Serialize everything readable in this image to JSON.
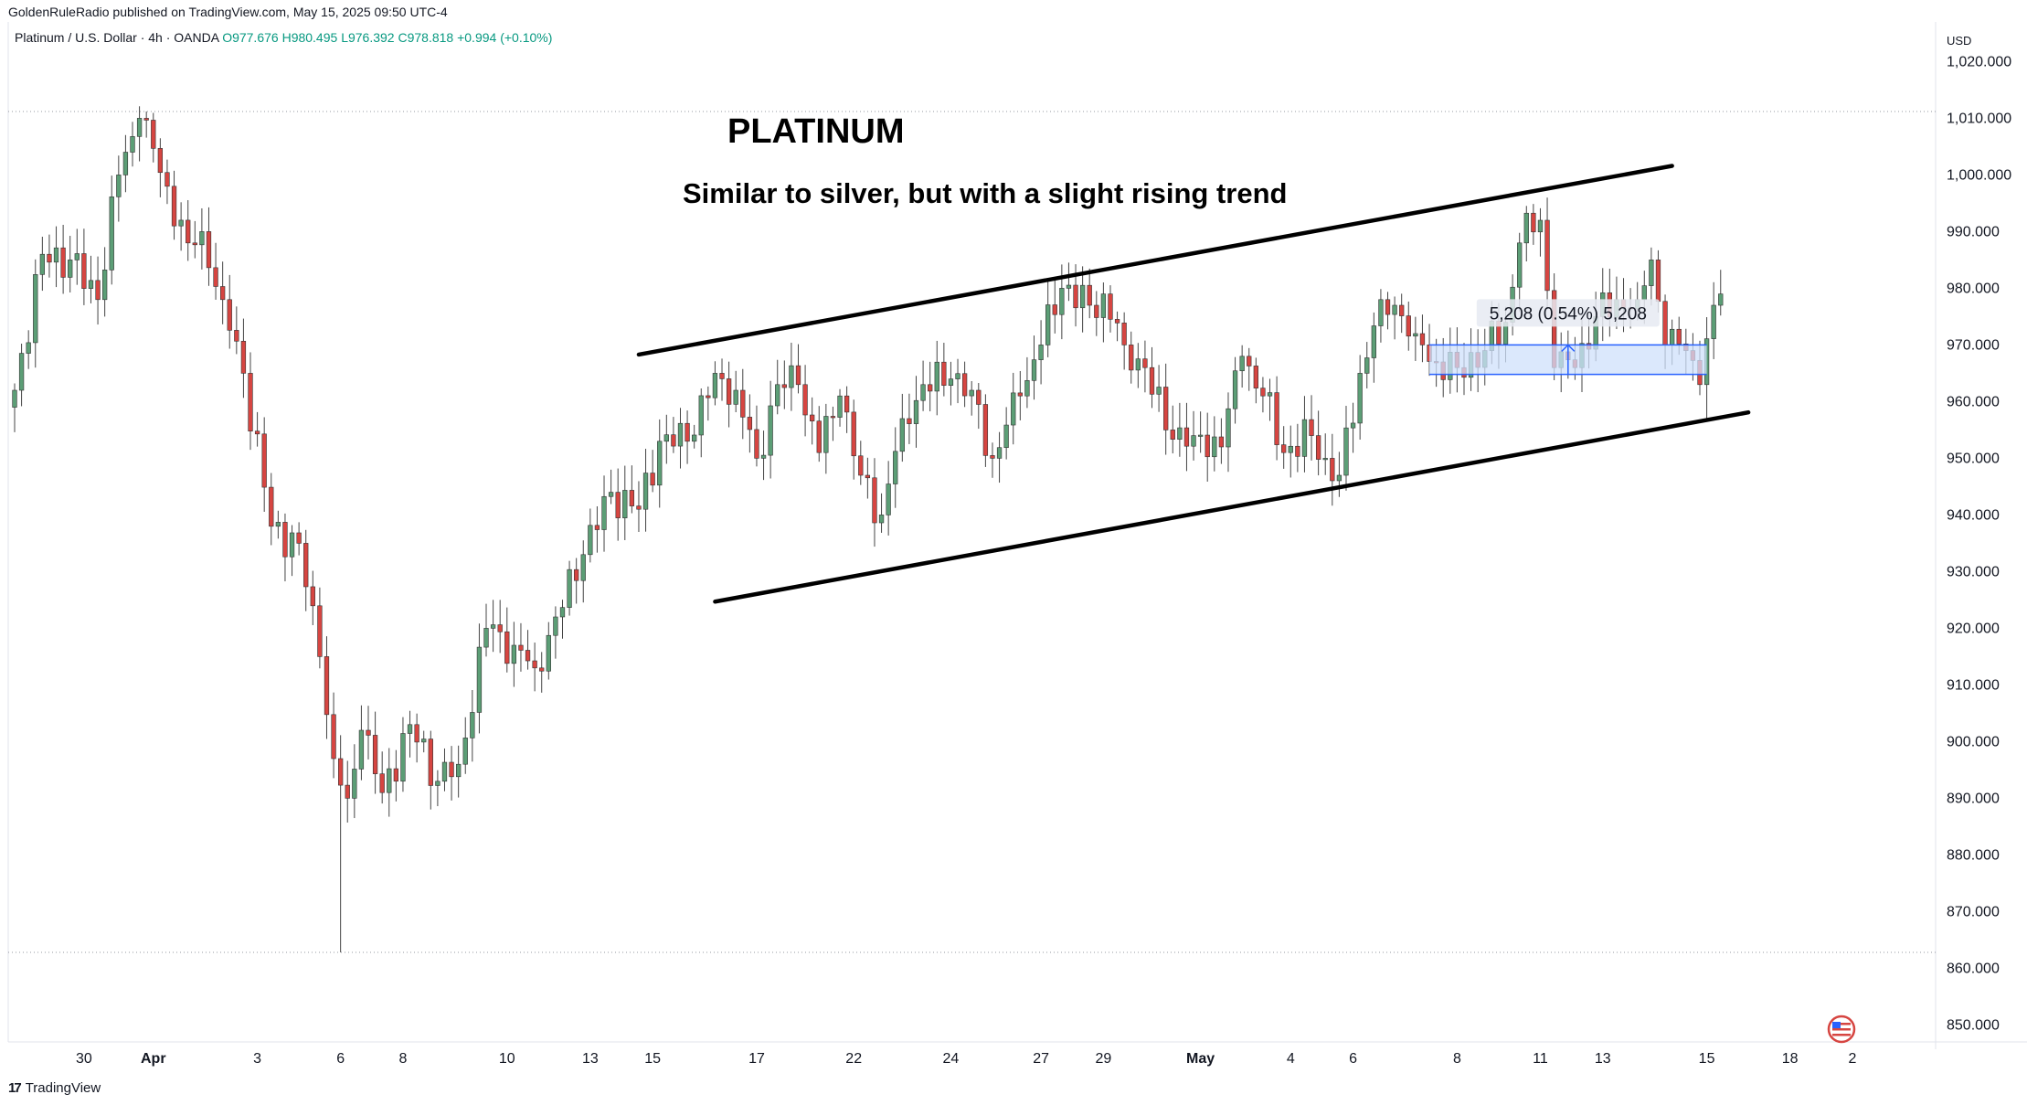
{
  "header": {
    "published_by": "GoldenRuleRadio published on TradingView.com, May 15, 2025 09:50 UTC-4",
    "symbol": "Platinum / U.S. Dollar · 4h · OANDA",
    "open": "O977.676",
    "high": "H980.495",
    "low": "L976.392",
    "close": "C978.818",
    "change": "+0.994 (+0.10%)"
  },
  "footer": {
    "logo_glyph": "17",
    "logo_text": "TradingView"
  },
  "colors": {
    "up": "#5c9e76",
    "down": "#d64541",
    "range_fill": "#cfe0fb",
    "range_border": "#2962ff"
  },
  "chart_data": {
    "type": "candlestick",
    "title": "PLATINUM",
    "subtitle": "Similar to silver, but with a slight rising trend",
    "currency_label": "USD",
    "ylim": [
      847,
      1027
    ],
    "y_ticks": [
      850,
      860,
      870,
      880,
      890,
      900,
      910,
      920,
      930,
      940,
      950,
      960,
      970,
      980,
      990,
      1000,
      1010,
      1020
    ],
    "y_tick_labels": [
      "850.000",
      "860.000",
      "870.000",
      "880.000",
      "890.000",
      "900.000",
      "910.000",
      "920.000",
      "930.000",
      "940.000",
      "950.000",
      "960.000",
      "970.000",
      "980.000",
      "990.000",
      "1,000.000",
      "1,010.000",
      "1,020.000"
    ],
    "x_range": [
      0,
      277
    ],
    "x_ticks": [
      {
        "i": 10,
        "label": "30",
        "bold": false
      },
      {
        "i": 20,
        "label": "Apr",
        "bold": true
      },
      {
        "i": 35,
        "label": "3",
        "bold": false
      },
      {
        "i": 47,
        "label": "6",
        "bold": false
      },
      {
        "i": 56,
        "label": "8",
        "bold": false
      },
      {
        "i": 71,
        "label": "10",
        "bold": false
      },
      {
        "i": 83,
        "label": "13",
        "bold": false
      },
      {
        "i": 92,
        "label": "15",
        "bold": false
      },
      {
        "i": 107,
        "label": "17",
        "bold": false
      },
      {
        "i": 121,
        "label": "22",
        "bold": false
      },
      {
        "i": 135,
        "label": "24",
        "bold": false
      },
      {
        "i": 148,
        "label": "27",
        "bold": false
      },
      {
        "i": 157,
        "label": "29",
        "bold": false
      },
      {
        "i": 171,
        "label": "May",
        "bold": true
      },
      {
        "i": 184,
        "label": "4",
        "bold": false
      },
      {
        "i": 193,
        "label": "6",
        "bold": false
      },
      {
        "i": 208,
        "label": "8",
        "bold": false
      },
      {
        "i": 220,
        "label": "11",
        "bold": false
      },
      {
        "i": 229,
        "label": "13",
        "bold": false
      },
      {
        "i": 244,
        "label": "15",
        "bold": false
      },
      {
        "i": 256,
        "label": "18",
        "bold": false
      },
      {
        "i": 265,
        "label": "2",
        "bold": false
      }
    ],
    "dotted_levels": [
      1011.2,
      862.8
    ],
    "anchors": [
      {
        "i": 0,
        "p": 962
      },
      {
        "i": 4,
        "p": 986
      },
      {
        "i": 8,
        "p": 985
      },
      {
        "i": 12,
        "p": 978
      },
      {
        "i": 15,
        "p": 1000
      },
      {
        "i": 18,
        "p": 1010
      },
      {
        "i": 22,
        "p": 998
      },
      {
        "i": 25,
        "p": 988
      },
      {
        "i": 27,
        "p": 990
      },
      {
        "i": 30,
        "p": 978
      },
      {
        "i": 33,
        "p": 965
      },
      {
        "i": 37,
        "p": 938
      },
      {
        "i": 41,
        "p": 935
      },
      {
        "i": 44,
        "p": 915
      },
      {
        "i": 46,
        "p": 897
      },
      {
        "i": 48,
        "p": 890
      },
      {
        "i": 50,
        "p": 902
      },
      {
        "i": 53,
        "p": 891
      },
      {
        "i": 57,
        "p": 903
      },
      {
        "i": 61,
        "p": 893
      },
      {
        "i": 64,
        "p": 896
      },
      {
        "i": 68,
        "p": 920
      },
      {
        "i": 72,
        "p": 917
      },
      {
        "i": 75,
        "p": 913
      },
      {
        "i": 78,
        "p": 922
      },
      {
        "i": 82,
        "p": 933
      },
      {
        "i": 86,
        "p": 944
      },
      {
        "i": 90,
        "p": 941
      },
      {
        "i": 93,
        "p": 953
      },
      {
        "i": 97,
        "p": 953
      },
      {
        "i": 101,
        "p": 965
      },
      {
        "i": 104,
        "p": 962
      },
      {
        "i": 107,
        "p": 950
      },
      {
        "i": 110,
        "p": 963
      },
      {
        "i": 113,
        "p": 963
      },
      {
        "i": 116,
        "p": 951
      },
      {
        "i": 119,
        "p": 961
      },
      {
        "i": 122,
        "p": 947
      },
      {
        "i": 125,
        "p": 940
      },
      {
        "i": 128,
        "p": 957
      },
      {
        "i": 131,
        "p": 963
      },
      {
        "i": 135,
        "p": 964
      },
      {
        "i": 138,
        "p": 962
      },
      {
        "i": 141,
        "p": 950
      },
      {
        "i": 145,
        "p": 961
      },
      {
        "i": 148,
        "p": 970
      },
      {
        "i": 151,
        "p": 980
      },
      {
        "i": 155,
        "p": 977
      },
      {
        "i": 157,
        "p": 979
      },
      {
        "i": 160,
        "p": 970
      },
      {
        "i": 163,
        "p": 966
      },
      {
        "i": 166,
        "p": 955
      },
      {
        "i": 170,
        "p": 954
      },
      {
        "i": 174,
        "p": 952
      },
      {
        "i": 177,
        "p": 968
      },
      {
        "i": 180,
        "p": 961
      },
      {
        "i": 183,
        "p": 951
      },
      {
        "i": 187,
        "p": 954
      },
      {
        "i": 189,
        "p": 950
      },
      {
        "i": 191,
        "p": 947
      },
      {
        "i": 194,
        "p": 965
      },
      {
        "i": 197,
        "p": 978
      },
      {
        "i": 199,
        "p": 977
      },
      {
        "i": 202,
        "p": 972
      },
      {
        "i": 205,
        "p": 967
      },
      {
        "i": 208,
        "p": 966
      },
      {
        "i": 212,
        "p": 969
      },
      {
        "i": 215,
        "p": 974
      },
      {
        "i": 217,
        "p": 988
      },
      {
        "i": 220,
        "p": 992
      },
      {
        "i": 222,
        "p": 966
      },
      {
        "i": 225,
        "p": 966
      },
      {
        "i": 228,
        "p": 975
      },
      {
        "i": 231,
        "p": 978
      },
      {
        "i": 234,
        "p": 978
      },
      {
        "i": 236,
        "p": 985
      },
      {
        "i": 238,
        "p": 970
      },
      {
        "i": 241,
        "p": 969
      },
      {
        "i": 243,
        "p": 963
      },
      {
        "i": 245,
        "p": 977
      },
      {
        "i": 246,
        "p": 979
      }
    ],
    "marked_bars": [
      {
        "i": 19,
        "high": 1011.2
      },
      {
        "i": 47,
        "low": 862.8
      },
      {
        "i": 221,
        "high": 996
      },
      {
        "i": 244,
        "low": 957
      }
    ],
    "trend_lines": [
      {
        "from": [
          90,
          968.3
        ],
        "to": [
          239,
          1001.6
        ]
      },
      {
        "from": [
          101,
          924.7
        ],
        "to": [
          250,
          958.1
        ]
      }
    ],
    "range_box": {
      "x1": 204,
      "x2": 244,
      "y1": 964.8,
      "y2": 970,
      "label": "5,208 (0.54%) 5,208"
    }
  }
}
